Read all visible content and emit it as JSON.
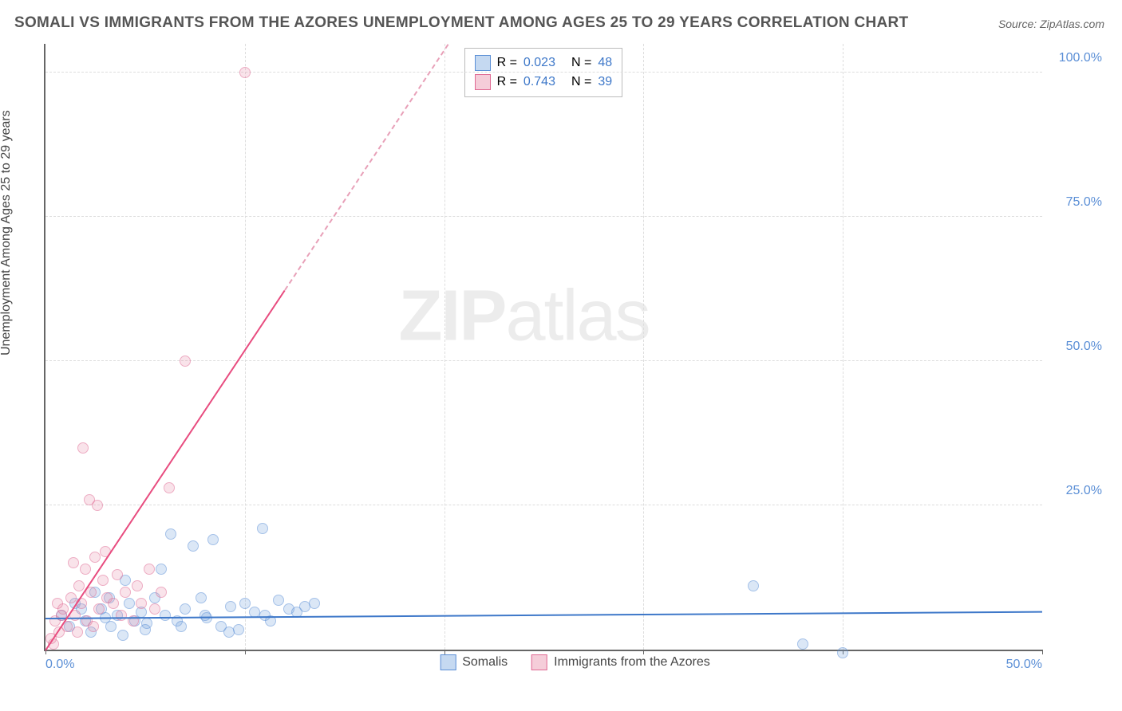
{
  "title": "SOMALI VS IMMIGRANTS FROM THE AZORES UNEMPLOYMENT AMONG AGES 25 TO 29 YEARS CORRELATION CHART",
  "source": "Source: ZipAtlas.com",
  "ylabel": "Unemployment Among Ages 25 to 29 years",
  "watermark_a": "ZIP",
  "watermark_b": "atlas",
  "chart": {
    "type": "scatter",
    "xlim": [
      0,
      50
    ],
    "ylim": [
      0,
      105
    ],
    "xticks": [
      0,
      10,
      20,
      30,
      40,
      50
    ],
    "yticks": [
      25,
      50,
      75,
      100
    ],
    "xtick_labels": [
      "0.0%",
      "",
      "",
      "",
      "",
      "50.0%"
    ],
    "ytick_labels": [
      "25.0%",
      "50.0%",
      "75.0%",
      "100.0%"
    ],
    "grid_color": "#dddddd",
    "axis_color": "#666666",
    "tick_label_color": "#5b8fd6",
    "background_color": "#ffffff",
    "marker_size": 14,
    "series": [
      {
        "name": "Somalis",
        "color_fill": "rgba(110,160,220,0.45)",
        "color_stroke": "#5b8fd6",
        "class": "blue",
        "R": "0.023",
        "N": "48",
        "trend": {
          "slope": 0.023,
          "intercept": 5.5
        },
        "points": [
          [
            0.8,
            6
          ],
          [
            1.2,
            4
          ],
          [
            1.5,
            8
          ],
          [
            2,
            5
          ],
          [
            2.3,
            3
          ],
          [
            2.8,
            7
          ],
          [
            3,
            5.5
          ],
          [
            3.3,
            4
          ],
          [
            3.6,
            6
          ],
          [
            3.9,
            2.5
          ],
          [
            4.2,
            8
          ],
          [
            4.5,
            5
          ],
          [
            4.8,
            6.5
          ],
          [
            5.1,
            4.5
          ],
          [
            5.5,
            9
          ],
          [
            5.8,
            14
          ],
          [
            6,
            6
          ],
          [
            6.3,
            20
          ],
          [
            6.6,
            5
          ],
          [
            7,
            7
          ],
          [
            7.4,
            18
          ],
          [
            7.8,
            9
          ],
          [
            8.1,
            5.5
          ],
          [
            8.4,
            19
          ],
          [
            8.8,
            4
          ],
          [
            9.3,
            7.5
          ],
          [
            9.7,
            3.5
          ],
          [
            10,
            8
          ],
          [
            10.5,
            6.5
          ],
          [
            10.9,
            21
          ],
          [
            11.3,
            5
          ],
          [
            11.7,
            8.5
          ],
          [
            12.2,
            7
          ],
          [
            12.6,
            6.5
          ],
          [
            13,
            7.5
          ],
          [
            13.5,
            8
          ],
          [
            9.2,
            3
          ],
          [
            11,
            6
          ],
          [
            5,
            3.5
          ],
          [
            6.8,
            4
          ],
          [
            8,
            6
          ],
          [
            35.5,
            11
          ],
          [
            40,
            -0.5
          ],
          [
            38,
            1
          ],
          [
            2.5,
            10
          ],
          [
            4,
            12
          ],
          [
            3.2,
            9
          ],
          [
            1.8,
            7
          ]
        ]
      },
      {
        "name": "Immigrants from the Azores",
        "color_fill": "rgba(230,130,160,0.4)",
        "color_stroke": "#e06a93",
        "class": "pink",
        "R": "0.743",
        "N": "39",
        "trend": {
          "slope": 5.2,
          "intercept": 0
        },
        "points": [
          [
            0.3,
            2
          ],
          [
            0.5,
            5
          ],
          [
            0.7,
            3
          ],
          [
            0.9,
            7
          ],
          [
            1.1,
            4
          ],
          [
            1.3,
            9
          ],
          [
            1.5,
            6
          ],
          [
            1.7,
            11
          ],
          [
            1.8,
            8
          ],
          [
            2,
            14
          ],
          [
            2.1,
            5
          ],
          [
            2.3,
            10
          ],
          [
            2.5,
            16
          ],
          [
            2.7,
            7
          ],
          [
            2.9,
            12
          ],
          [
            3.1,
            9
          ],
          [
            2.2,
            26
          ],
          [
            2.6,
            25
          ],
          [
            1.9,
            35
          ],
          [
            3.4,
            8
          ],
          [
            3.6,
            13
          ],
          [
            3.8,
            6
          ],
          [
            4,
            10
          ],
          [
            4.4,
            5
          ],
          [
            4.8,
            8
          ],
          [
            5.2,
            14
          ],
          [
            5.5,
            7
          ],
          [
            5.8,
            10
          ],
          [
            6.2,
            28
          ],
          [
            4.6,
            11
          ],
          [
            3,
            17
          ],
          [
            1.4,
            15
          ],
          [
            0.6,
            8
          ],
          [
            7,
            50
          ],
          [
            10,
            100
          ],
          [
            2.4,
            4
          ],
          [
            1.6,
            3
          ],
          [
            0.4,
            1
          ],
          [
            0.8,
            6
          ]
        ]
      }
    ]
  },
  "legend_top": {
    "rows": [
      {
        "class": "blue",
        "r_label": "R =",
        "r_val": "0.023",
        "n_label": "N =",
        "n_val": "48"
      },
      {
        "class": "pink",
        "r_label": "R =",
        "r_val": "0.743",
        "n_label": "N =",
        "n_val": "39"
      }
    ]
  },
  "legend_bottom": {
    "items": [
      {
        "class": "blue",
        "label": "Somalis"
      },
      {
        "class": "pink",
        "label": "Immigrants from the Azores"
      }
    ]
  }
}
